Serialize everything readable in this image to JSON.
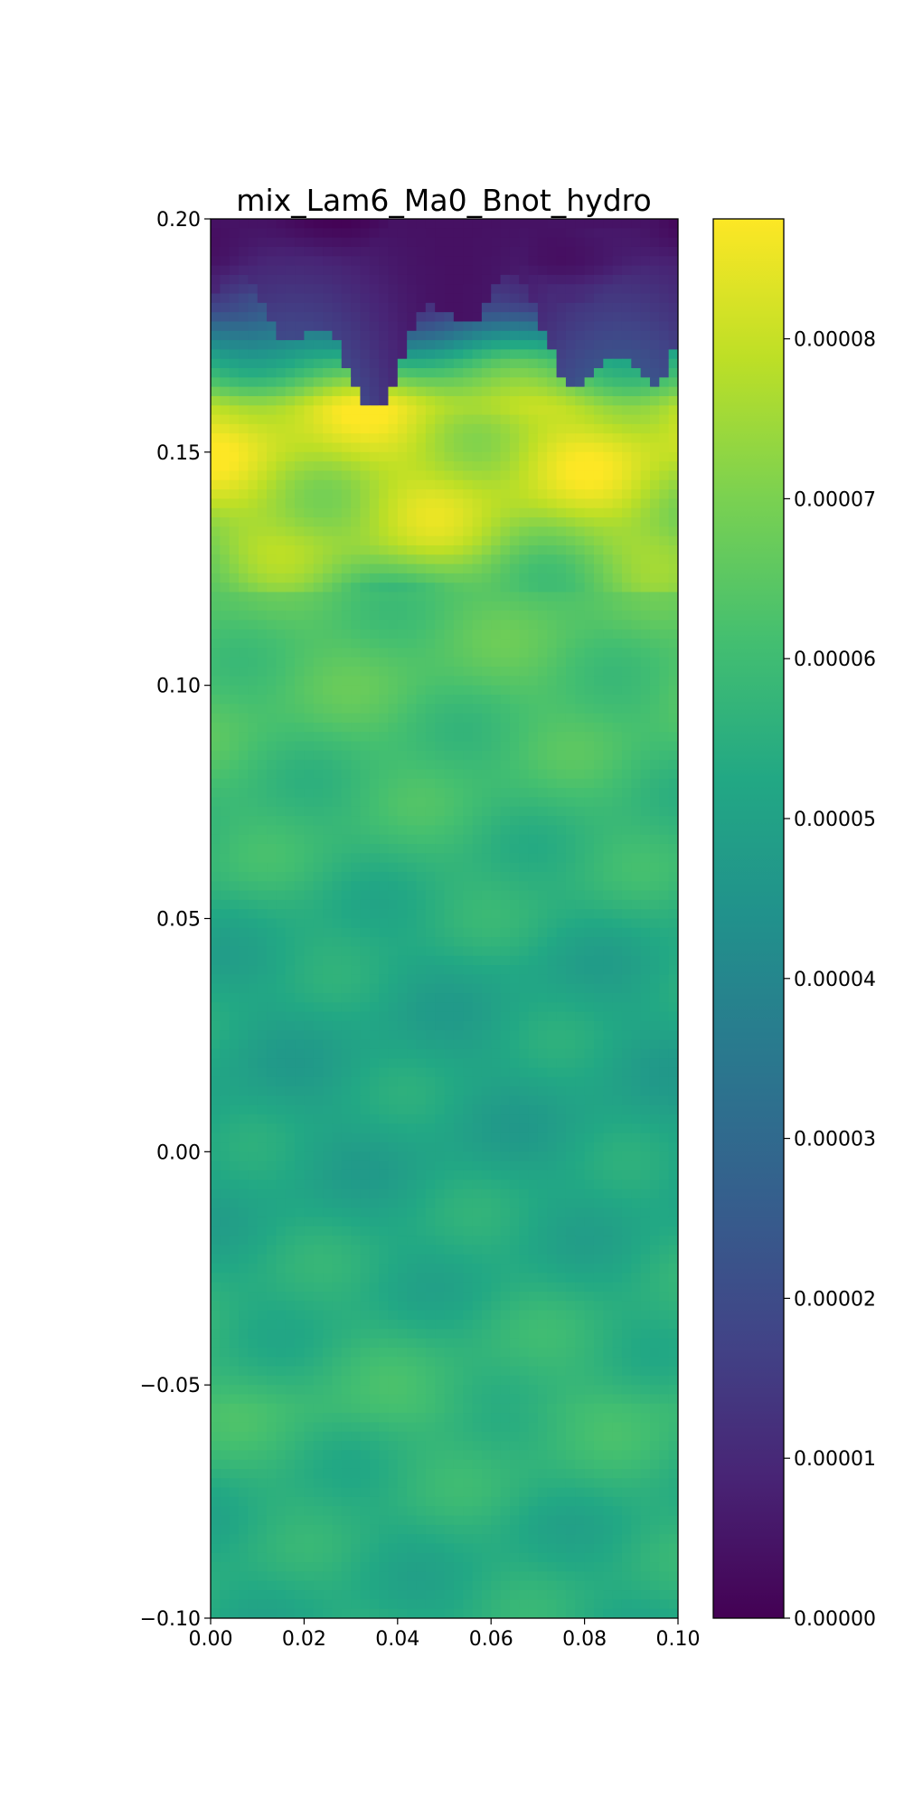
{
  "chart_data": {
    "type": "heatmap",
    "title": "mix_Lam6_Ma0_Bnot_hydro",
    "xlabel": "",
    "ylabel": "",
    "xlim": [
      0.0,
      0.1
    ],
    "ylim": [
      -0.1,
      0.2
    ],
    "x_ticks": [
      0.0,
      0.02,
      0.04,
      0.06,
      0.08,
      0.1
    ],
    "x_tick_labels": [
      "0.00",
      "0.02",
      "0.04",
      "0.06",
      "0.08",
      "0.10"
    ],
    "y_ticks": [
      -0.1,
      -0.05,
      0.0,
      0.05,
      0.1,
      0.15,
      0.2
    ],
    "y_tick_labels": [
      "−0.10",
      "−0.05",
      "0.00",
      "0.05",
      "0.10",
      "0.15",
      "0.20"
    ],
    "colormap": "viridis",
    "colorbar": {
      "vmin": 0.0,
      "vmax": 8.75e-05,
      "ticks": [
        0.0,
        1e-05,
        2e-05,
        3e-05,
        4e-05,
        5e-05,
        6e-05,
        7e-05,
        8e-05
      ],
      "tick_labels": [
        "0.00000",
        "0.00001",
        "0.00002",
        "0.00003",
        "0.00004",
        "0.00005",
        "0.00006",
        "0.00007",
        "0.00008"
      ]
    },
    "field_profile": {
      "description_y": [
        0.2,
        0.19,
        0.18,
        0.17,
        0.16,
        0.15,
        0.14,
        0.13,
        0.12,
        0.1,
        0.08,
        0.06,
        0.04,
        0.02,
        0.0,
        -0.03,
        -0.055,
        -0.08,
        -0.1
      ],
      "mean_value": [
        4e-06,
        8e-06,
        2e-05,
        5.5e-05,
        8e-05,
        8e-05,
        7.8e-05,
        7.4e-05,
        6.4e-05,
        6.3e-05,
        6e-05,
        5.7e-05,
        5.2e-05,
        5.1e-05,
        5.1e-05,
        5.4e-05,
        5.9e-05,
        5.4e-05,
        5.4e-05
      ]
    }
  }
}
